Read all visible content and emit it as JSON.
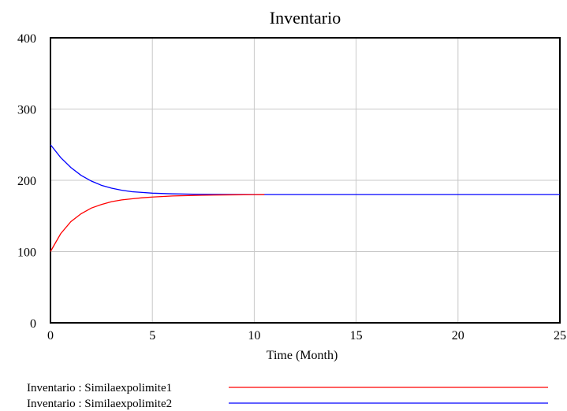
{
  "chart_data": {
    "type": "line",
    "title": "Inventario",
    "xlabel": "Time (Month)",
    "ylabel": "",
    "xlim": [
      0,
      25
    ],
    "ylim": [
      0,
      400
    ],
    "x_ticks": [
      0,
      5,
      10,
      15,
      20,
      25
    ],
    "y_ticks": [
      0,
      100,
      200,
      300,
      400
    ],
    "grid": true,
    "legend_position": "bottom",
    "series": [
      {
        "name": "Inventario : Similaexpolimite2",
        "color": "#0000ff",
        "x": [
          0,
          0.5,
          1,
          1.5,
          2,
          2.5,
          3,
          3.5,
          4,
          4.5,
          5,
          6,
          7,
          8,
          9,
          10,
          12,
          15,
          20,
          25
        ],
        "y": [
          250,
          232,
          218,
          207,
          199,
          193,
          189,
          186,
          184,
          183,
          182,
          181,
          180.5,
          180.2,
          180.1,
          180,
          180,
          180,
          180,
          180
        ]
      },
      {
        "name": "Inventario : Similaexpolimite1",
        "color": "#ff0000",
        "x": [
          0,
          0.5,
          1,
          1.5,
          2,
          2.5,
          3,
          3.5,
          4,
          4.5,
          5,
          6,
          7,
          8,
          9,
          10,
          10.5
        ],
        "y": [
          100,
          125,
          142,
          153,
          161,
          166,
          170,
          172.5,
          174,
          175.5,
          176.5,
          178,
          178.8,
          179.3,
          179.6,
          179.8,
          179.9
        ]
      }
    ]
  }
}
